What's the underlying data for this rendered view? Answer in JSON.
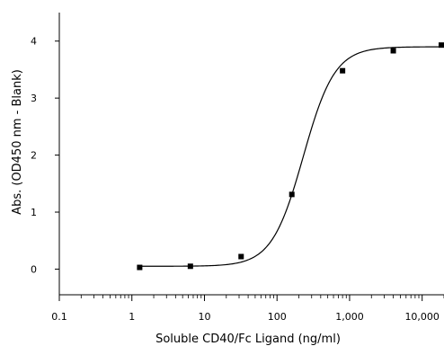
{
  "chart_data": {
    "type": "scatter",
    "title": "",
    "xlabel": "Soluble CD40/Fc Ligand (ng/ml)",
    "ylabel": "Abs. (OD450 nm - Blank)",
    "xscale": "log",
    "xlim": [
      0.1,
      20000
    ],
    "ylim": [
      -0.45,
      4.5
    ],
    "x_ticks": [
      0.1,
      1,
      10,
      100,
      1000,
      10000
    ],
    "x_tick_labels": [
      "0.1",
      "1",
      "10",
      "100",
      "1,000",
      "10,000"
    ],
    "y_ticks": [
      0,
      1,
      2,
      3,
      4
    ],
    "y_tick_labels": [
      "0",
      "1",
      "2",
      "3",
      "4"
    ],
    "grid": false,
    "legend": "none",
    "series": [
      {
        "x": [
          1.28,
          6.4,
          32,
          160,
          800,
          4000,
          20000
        ],
        "y": [
          0.03,
          0.05,
          0.22,
          1.31,
          3.48,
          3.83,
          3.93
        ]
      }
    ],
    "fit_curve": {
      "model": "4PL",
      "bottom": 0.05,
      "top": 3.9,
      "ec50": 230,
      "hill": 2.0
    },
    "colors": {
      "marker": "#000000",
      "line": "#000000"
    }
  }
}
